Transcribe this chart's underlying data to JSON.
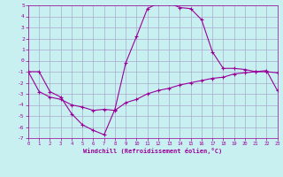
{
  "xlabel": "Windchill (Refroidissement éolien,°C)",
  "bg_color": "#c8f0f0",
  "line_color": "#990099",
  "grid_color": "#aaaacc",
  "x_min": 0,
  "x_max": 23,
  "y_min": -7,
  "y_max": 5,
  "curve1_x": [
    0,
    1,
    2,
    3,
    4,
    5,
    6,
    7,
    8,
    9,
    10,
    11,
    12,
    13,
    14,
    15,
    16,
    17,
    18,
    19,
    20,
    21,
    22,
    23
  ],
  "curve1_y": [
    -1,
    -1,
    -2.8,
    -3.3,
    -4.8,
    -5.8,
    -6.3,
    -6.7,
    -4.4,
    -0.2,
    2.2,
    4.7,
    5.2,
    5.2,
    4.8,
    4.7,
    3.7,
    0.8,
    -0.7,
    -0.7,
    -0.8,
    -1.0,
    -1.0,
    -1.1
  ],
  "curve2_x": [
    0,
    1,
    2,
    3,
    4,
    5,
    6,
    7,
    8,
    9,
    10,
    11,
    12,
    13,
    14,
    15,
    16,
    17,
    18,
    19,
    20,
    21,
    22,
    23
  ],
  "curve2_y": [
    -1,
    -2.8,
    -3.3,
    -3.5,
    -4.0,
    -4.2,
    -4.5,
    -4.4,
    -4.5,
    -3.8,
    -3.5,
    -3.0,
    -2.7,
    -2.5,
    -2.2,
    -2.0,
    -1.8,
    -1.6,
    -1.5,
    -1.2,
    -1.1,
    -1.0,
    -0.9,
    -2.7
  ]
}
